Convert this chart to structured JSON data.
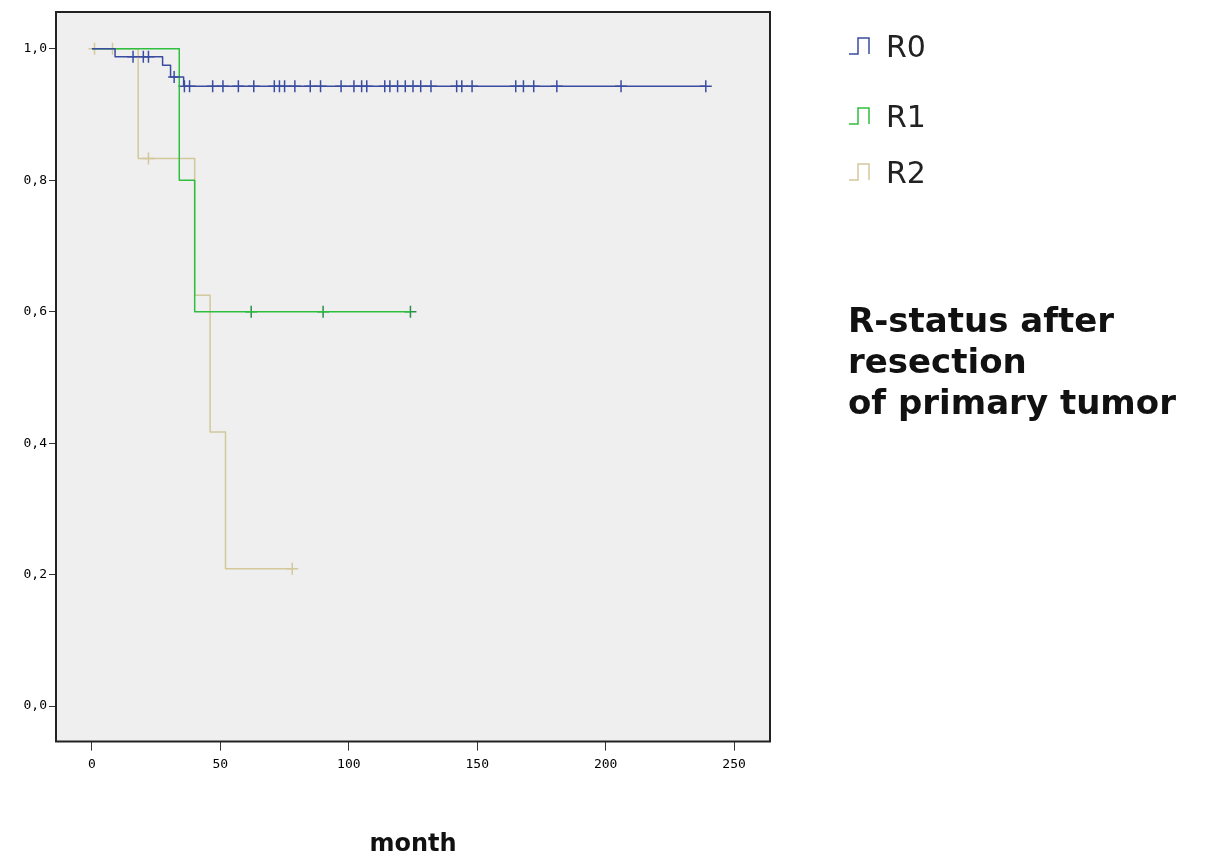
{
  "chart_data": {
    "type": "step",
    "xlabel": "month",
    "legend_title": "R-status after\nresection\nof primary tumor",
    "legend": "right",
    "xlim": [
      -14,
      264
    ],
    "ylim": [
      -0.054,
      1.056
    ],
    "xticks": [
      0,
      50,
      100,
      150,
      200,
      250
    ],
    "yticks": [
      {
        "value": 0,
        "label": "0,0"
      },
      {
        "value": 0.2,
        "label": "0,2"
      },
      {
        "value": 0.4,
        "label": "0,4"
      },
      {
        "value": 0.6,
        "label": "0,6"
      },
      {
        "value": 0.8,
        "label": "0,8"
      },
      {
        "value": 1,
        "label": "1,0"
      }
    ],
    "series": [
      {
        "name": "R0",
        "color": "#3a4ca0",
        "x": [
          0,
          9,
          27.5,
          30.6,
          35.7,
          239
        ],
        "values": [
          1,
          0.988,
          0.975,
          0.957,
          0.943,
          0.943
        ]
      },
      {
        "name": "R1",
        "color": "#2fbf3f",
        "x": [
          0,
          34,
          40,
          124
        ],
        "values": [
          1,
          0.8,
          0.6,
          0.6
        ]
      },
      {
        "name": "R2",
        "color": "#d2c89a",
        "x": [
          0,
          18,
          40,
          46,
          52,
          78
        ],
        "values": [
          1,
          0.833,
          0.625,
          0.417,
          0.209,
          0.209
        ]
      },
      {
        "type": "scatter",
        "marker": "cross",
        "color": "#3a4ca0",
        "x": [
          16,
          20,
          22,
          32,
          36,
          38,
          47,
          51,
          57,
          63,
          71,
          73,
          75,
          79,
          85,
          89,
          97,
          102,
          105,
          107,
          114,
          116,
          119,
          122,
          125,
          128,
          132,
          142,
          144,
          148,
          165,
          168,
          172,
          181,
          206,
          239
        ],
        "values": [
          0.988,
          0.988,
          0.988,
          0.957,
          0.943,
          0.943,
          0.943,
          0.943,
          0.943,
          0.943,
          0.943,
          0.943,
          0.943,
          0.943,
          0.943,
          0.943,
          0.943,
          0.943,
          0.943,
          0.943,
          0.943,
          0.943,
          0.943,
          0.943,
          0.943,
          0.943,
          0.943,
          0.943,
          0.943,
          0.943,
          0.943,
          0.943,
          0.943,
          0.943,
          0.943,
          0.943
        ]
      },
      {
        "type": "scatter",
        "marker": "cross",
        "color": "#2a8f4a",
        "x": [
          62,
          90,
          124
        ],
        "values": [
          0.6,
          0.6,
          0.6
        ]
      },
      {
        "type": "scatter",
        "marker": "cross",
        "color": "#d2c89a",
        "x": [
          1,
          8,
          22,
          78
        ],
        "values": [
          1,
          1,
          0.833,
          0.209
        ]
      }
    ]
  }
}
